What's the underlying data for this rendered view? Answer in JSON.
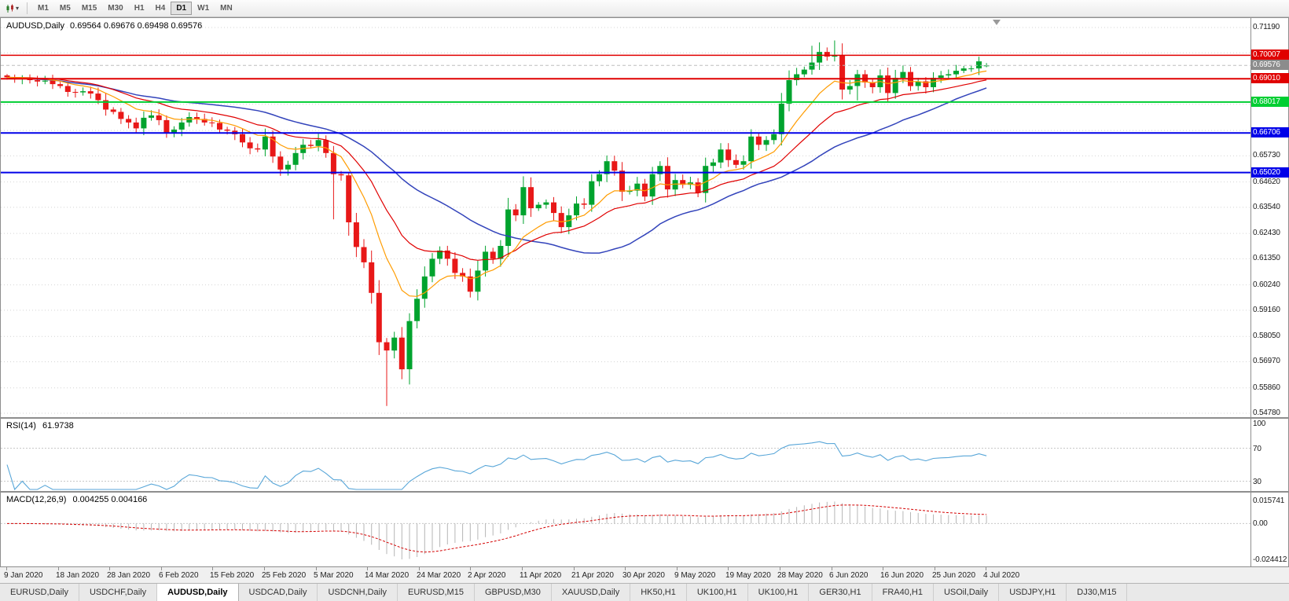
{
  "toolbar": {
    "timeframes": [
      "M1",
      "M5",
      "M15",
      "M30",
      "H1",
      "H4",
      "D1",
      "W1",
      "MN"
    ],
    "active_timeframe": "D1"
  },
  "chart": {
    "title_symbol": "AUDUSD,Daily",
    "title_ohlc": "0.69564 0.69676 0.69498 0.69576",
    "price_scale": {
      "labels": [
        "0.71190",
        "0.65730",
        "0.64620",
        "0.63540",
        "0.62430",
        "0.61350",
        "0.60240",
        "0.59160",
        "0.58050",
        "0.56970",
        "0.55860",
        "0.54780"
      ],
      "minor": [
        0.7011,
        0.69,
        0.6792,
        0.6681
      ]
    },
    "hlines": [
      {
        "label": "0.70007",
        "price": 0.70007,
        "color": "#e00000",
        "width": 1.5
      },
      {
        "label": "0.69010",
        "price": 0.6901,
        "color": "#e00000",
        "width": 2
      },
      {
        "label": "0.68017",
        "price": 0.68017,
        "color": "#00ce32",
        "width": 2
      },
      {
        "label": "0.66706",
        "price": 0.66706,
        "color": "#0000e8",
        "width": 2
      },
      {
        "label": "0.65020",
        "price": 0.6502,
        "color": "#0000e8",
        "width": 2
      }
    ],
    "current_price": {
      "label": "0.69576",
      "price": 0.69576,
      "bg": "#8c8c8c"
    }
  },
  "rsi": {
    "label": "RSI(14)",
    "value": "61.9738",
    "line_color": "#58a6d8",
    "scale_labels": [
      {
        "text": "100",
        "level": 100
      },
      {
        "text": "70",
        "level": 70
      },
      {
        "text": "30",
        "level": 30
      }
    ]
  },
  "macd": {
    "label": "MACD(12,26,9)",
    "value": "0.004255 0.004166",
    "hist_color": "#b6b6b6",
    "signal_color": "#d40000",
    "scale_labels": [
      {
        "text": "0.015741",
        "level": 0.015741
      },
      {
        "text": "0.00",
        "level": 0
      },
      {
        "text": "-0.024412",
        "level": -0.024412
      }
    ]
  },
  "tabs": [
    "EURUSD,Daily",
    "USDCHF,Daily",
    "AUDUSD,Daily",
    "USDCAD,Daily",
    "USDCNH,Daily",
    "EURUSD,M15",
    "GBPUSD,M30",
    "XAUUSD,Daily",
    "HK50,H1",
    "UK100,H1",
    "UK100,H1",
    "GER30,H1",
    "FRA40,H1",
    "USOil,Daily",
    "USDJPY,H1",
    "DJ30,M15"
  ],
  "active_tab_index": 2,
  "chart_data": {
    "type": "candlestick",
    "symbol": "AUDUSD",
    "timeframe": "Daily",
    "ylim": [
      0.5478,
      0.7119
    ],
    "first_open": 0.6915,
    "closes": [
      0.6907,
      0.69,
      0.6903,
      0.6895,
      0.6889,
      0.6893,
      0.6878,
      0.687,
      0.6845,
      0.6843,
      0.6848,
      0.6838,
      0.681,
      0.677,
      0.676,
      0.673,
      0.6715,
      0.669,
      0.6735,
      0.6745,
      0.6725,
      0.667,
      0.6685,
      0.6715,
      0.6738,
      0.673,
      0.6715,
      0.6713,
      0.6685,
      0.668,
      0.6665,
      0.663,
      0.6605,
      0.66,
      0.6655,
      0.657,
      0.6515,
      0.6535,
      0.6585,
      0.662,
      0.6615,
      0.664,
      0.6585,
      0.6495,
      0.649,
      0.629,
      0.6185,
      0.612,
      0.599,
      0.578,
      0.5745,
      0.58,
      0.5665,
      0.587,
      0.5965,
      0.606,
      0.6135,
      0.617,
      0.6135,
      0.6075,
      0.606,
      0.5995,
      0.6085,
      0.6165,
      0.6135,
      0.619,
      0.6345,
      0.632,
      0.644,
      0.635,
      0.6365,
      0.6375,
      0.633,
      0.627,
      0.632,
      0.637,
      0.6365,
      0.6465,
      0.6495,
      0.655,
      0.651,
      0.642,
      0.6425,
      0.6455,
      0.64,
      0.6495,
      0.653,
      0.643,
      0.647,
      0.645,
      0.646,
      0.6415,
      0.653,
      0.6545,
      0.66,
      0.6555,
      0.6535,
      0.655,
      0.6655,
      0.662,
      0.664,
      0.6665,
      0.6795,
      0.6895,
      0.692,
      0.694,
      0.697,
      0.7015,
      0.6995,
      0.7,
      0.6855,
      0.687,
      0.692,
      0.6885,
      0.6865,
      0.6915,
      0.684,
      0.6905,
      0.693,
      0.687,
      0.689,
      0.6865,
      0.6905,
      0.6915,
      0.692,
      0.6935,
      0.6945,
      0.6945,
      0.6975,
      0.69576
    ],
    "overrides": {
      "0": {
        "h": 0.6921
      },
      "43": {
        "l": 0.6303
      },
      "45": {
        "h": 0.65
      },
      "50": {
        "l": 0.5509
      },
      "53": {
        "h": 0.5903
      },
      "106": {
        "h": 0.7041
      },
      "107": {
        "h": 0.7056
      },
      "109": {
        "h": 0.7064
      },
      "112": {
        "l": 0.6809
      },
      "129": {
        "o": 0.69564,
        "h": 0.69676,
        "l": 0.69498
      }
    },
    "date_labels": [
      "9 Jan 2020",
      "18 Jan 2020",
      "28 Jan 2020",
      "6 Feb 2020",
      "15 Feb 2020",
      "25 Feb 2020",
      "5 Mar 2020",
      "14 Mar 2020",
      "24 Mar 2020",
      "2 Apr 2020",
      "11 Apr 2020",
      "21 Apr 2020",
      "30 Apr 2020",
      "9 May 2020",
      "19 May 2020",
      "28 May 2020",
      "6 Jun 2020",
      "16 Jun 2020",
      "25 Jun 2020",
      "4 Jul 2020"
    ],
    "colors": {
      "up": "#00a32e",
      "down": "#e81818",
      "ma_fast": "#ff9c00",
      "ma_mid": "#e00000",
      "ma_slow": "#3344bb"
    },
    "ma_periods": {
      "fast": 10,
      "mid": 21,
      "slow": 34
    },
    "indicators": {
      "rsi_period": 14,
      "rsi_current": 61.9738,
      "macd_params": [
        12,
        26,
        9
      ],
      "macd_current": 0.004255,
      "macd_signal_current": 0.004166
    }
  }
}
